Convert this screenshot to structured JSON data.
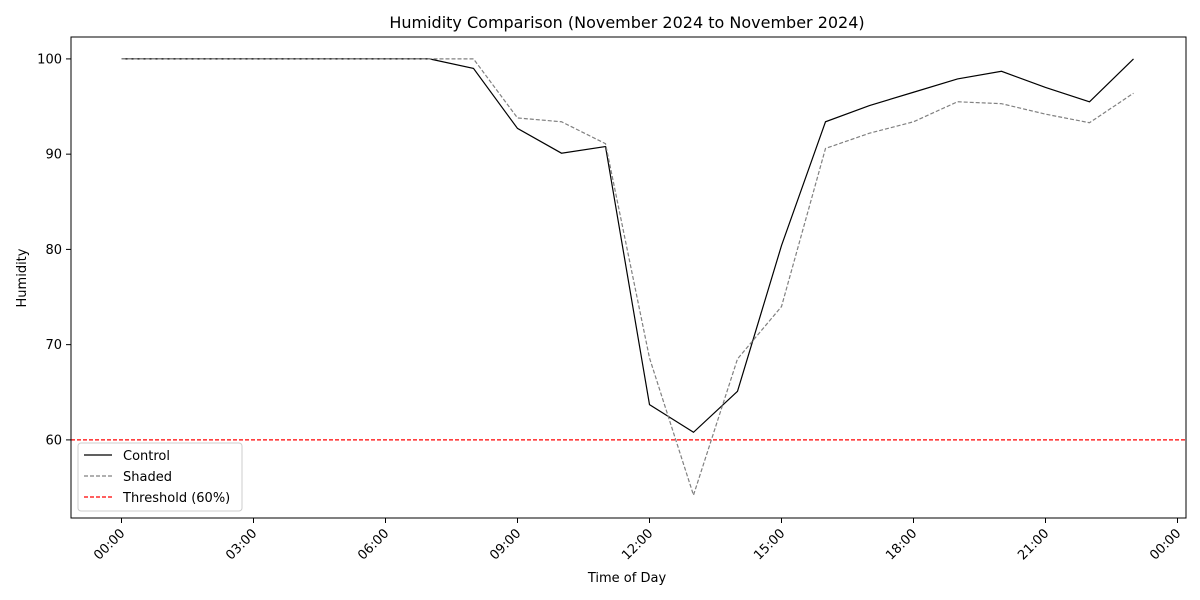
{
  "chart_data": {
    "type": "line",
    "title": "Humidity Comparison (November 2024 to November 2024)",
    "xlabel": "Time of Day",
    "ylabel": "Humidity",
    "x": [
      "00:00",
      "01:00",
      "02:00",
      "03:00",
      "04:00",
      "05:00",
      "06:00",
      "07:00",
      "08:00",
      "09:00",
      "10:00",
      "11:00",
      "12:00",
      "13:00",
      "14:00",
      "15:00",
      "16:00",
      "17:00",
      "18:00",
      "19:00",
      "20:00",
      "21:00",
      "22:00",
      "23:00"
    ],
    "x_ticks": [
      "00:00",
      "03:00",
      "06:00",
      "09:00",
      "12:00",
      "15:00",
      "18:00",
      "21:00",
      "00:00"
    ],
    "y_ticks": [
      60,
      70,
      80,
      90,
      100
    ],
    "ylim": [
      51.8,
      102.3
    ],
    "grid": false,
    "legend_position": "lower-left",
    "series": [
      {
        "name": "Control",
        "color": "#000000",
        "style": "solid",
        "values": [
          100,
          100,
          100,
          100,
          100,
          100,
          100,
          100,
          99.0,
          92.7,
          90.1,
          90.8,
          63.7,
          60.8,
          65.1,
          80.4,
          93.4,
          95.1,
          96.5,
          97.9,
          98.7,
          97.0,
          95.5,
          100
        ]
      },
      {
        "name": "Shaded",
        "color": "#808080",
        "style": "dashed",
        "values": [
          100,
          100,
          100,
          100,
          100,
          100,
          100,
          100,
          100,
          93.8,
          93.4,
          91.1,
          68.6,
          54.2,
          68.5,
          74.0,
          90.6,
          92.2,
          93.4,
          95.5,
          95.3,
          94.2,
          93.3,
          96.4
        ]
      }
    ],
    "reference_lines": [
      {
        "name": "Threshold (60%)",
        "value": 60,
        "color": "#ff0000",
        "style": "dashed"
      }
    ]
  }
}
